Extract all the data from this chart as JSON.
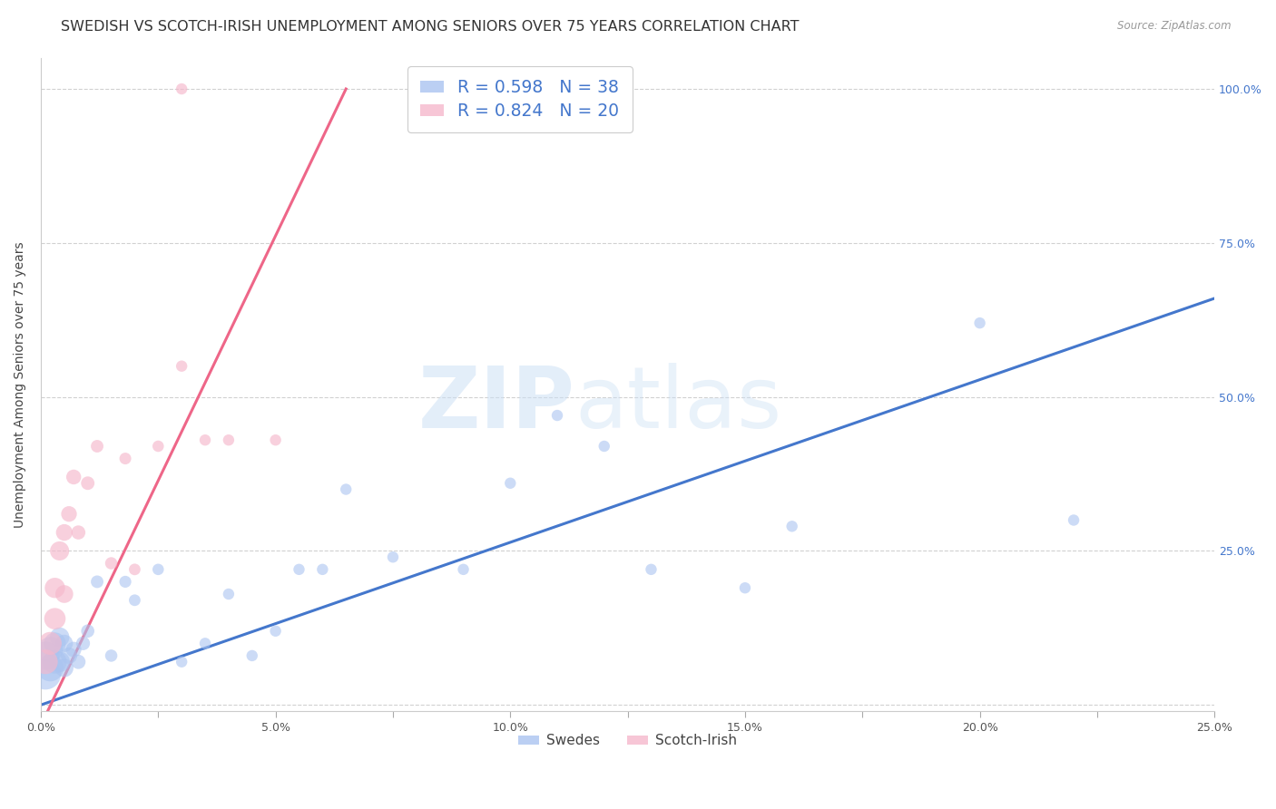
{
  "title": "SWEDISH VS SCOTCH-IRISH UNEMPLOYMENT AMONG SENIORS OVER 75 YEARS CORRELATION CHART",
  "source": "Source: ZipAtlas.com",
  "ylabel": "Unemployment Among Seniors over 75 years",
  "xlim": [
    0.0,
    0.25
  ],
  "ylim": [
    -0.01,
    1.05
  ],
  "background_color": "#ffffff",
  "grid_color": "#cccccc",
  "swedish_R": 0.598,
  "swedish_N": 38,
  "scotch_R": 0.824,
  "scotch_N": 20,
  "swedish_color": "#aac4f0",
  "scotch_color": "#f5b8cc",
  "swedish_line_color": "#4477cc",
  "scotch_line_color": "#ee6688",
  "swedes_x": [
    0.001,
    0.001,
    0.002,
    0.002,
    0.003,
    0.003,
    0.004,
    0.004,
    0.005,
    0.005,
    0.006,
    0.007,
    0.008,
    0.009,
    0.01,
    0.012,
    0.015,
    0.018,
    0.02,
    0.025,
    0.03,
    0.035,
    0.04,
    0.045,
    0.05,
    0.055,
    0.06,
    0.065,
    0.075,
    0.09,
    0.1,
    0.11,
    0.12,
    0.13,
    0.15,
    0.16,
    0.2,
    0.22
  ],
  "swedes_y": [
    0.05,
    0.08,
    0.06,
    0.09,
    0.07,
    0.1,
    0.07,
    0.11,
    0.06,
    0.1,
    0.08,
    0.09,
    0.07,
    0.1,
    0.12,
    0.2,
    0.08,
    0.2,
    0.17,
    0.22,
    0.07,
    0.1,
    0.18,
    0.08,
    0.12,
    0.22,
    0.22,
    0.35,
    0.24,
    0.22,
    0.36,
    0.47,
    0.42,
    0.22,
    0.19,
    0.29,
    0.62,
    0.3
  ],
  "swedes_size": [
    600,
    500,
    450,
    400,
    350,
    300,
    270,
    240,
    210,
    190,
    170,
    150,
    130,
    120,
    110,
    100,
    95,
    90,
    85,
    82,
    80,
    80,
    80,
    80,
    80,
    80,
    80,
    80,
    80,
    80,
    80,
    80,
    80,
    80,
    80,
    80,
    80,
    80
  ],
  "scotch_x": [
    0.001,
    0.002,
    0.003,
    0.003,
    0.004,
    0.005,
    0.005,
    0.006,
    0.007,
    0.008,
    0.01,
    0.012,
    0.015,
    0.018,
    0.02,
    0.025,
    0.03,
    0.035,
    0.04,
    0.05
  ],
  "scotch_y": [
    0.07,
    0.1,
    0.14,
    0.19,
    0.25,
    0.18,
    0.28,
    0.31,
    0.37,
    0.28,
    0.36,
    0.42,
    0.23,
    0.4,
    0.22,
    0.42,
    0.55,
    0.43,
    0.43,
    0.43
  ],
  "scotch_size": [
    380,
    330,
    290,
    260,
    230,
    200,
    175,
    155,
    140,
    125,
    115,
    100,
    95,
    88,
    85,
    82,
    80,
    80,
    80,
    80
  ],
  "scotch_outlier_x": [
    0.03
  ],
  "scotch_outlier_y": [
    1.0
  ],
  "scotch_outlier_s": [
    80
  ],
  "swedish_line_pts": [
    [
      0.0,
      0.0
    ],
    [
      0.25,
      0.66
    ]
  ],
  "scotch_line_pts": [
    [
      -0.002,
      -0.065
    ],
    [
      0.065,
      1.0
    ]
  ],
  "title_fontsize": 11.5,
  "label_fontsize": 10,
  "tick_fontsize": 9,
  "legend_fontsize": 13.5
}
